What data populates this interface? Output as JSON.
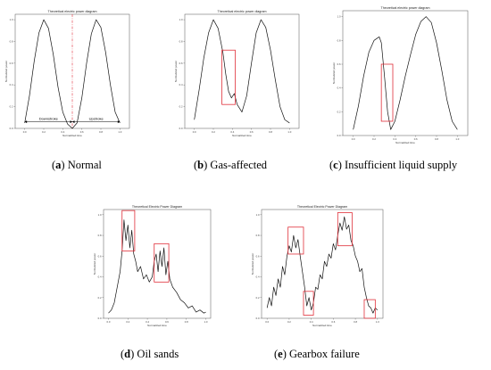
{
  "figure": {
    "captions": [
      {
        "letter": "a",
        "text": "Normal"
      },
      {
        "letter": "b",
        "text": "Gas-affected"
      },
      {
        "letter": "c",
        "text": "Insufficient liquid supply"
      },
      {
        "letter": "d",
        "text": "Oil sands"
      },
      {
        "letter": "e",
        "text": "Gearbox failure"
      }
    ]
  },
  "chart_data": [
    {
      "type": "line",
      "title": "Theoretical electric power diagram",
      "xlabel": "Normalized time",
      "ylabel": "Normalized power",
      "xlim": [
        -0.1,
        1.1
      ],
      "ylim": [
        0,
        1.05
      ],
      "xticks": [
        "0.0",
        "0.2",
        "0.4",
        "0.6",
        "0.8",
        "1.0"
      ],
      "yticks": [
        "0.0",
        "0.2",
        "0.4",
        "0.6",
        "0.8",
        "1.0"
      ],
      "annotations": [
        "Downstroke",
        "Upstroke"
      ],
      "divider_x": 0.5,
      "series": [
        {
          "x": [
            0,
            0.05,
            0.1,
            0.15,
            0.2,
            0.25,
            0.3,
            0.35,
            0.4,
            0.45,
            0.5,
            0.55,
            0.6,
            0.65,
            0.7,
            0.75,
            0.8,
            0.85,
            0.9,
            0.95,
            1.0
          ],
          "y": [
            0.05,
            0.3,
            0.62,
            0.88,
            1.0,
            0.92,
            0.68,
            0.38,
            0.15,
            0.04,
            0.0,
            0.05,
            0.28,
            0.6,
            0.87,
            1.0,
            0.93,
            0.7,
            0.4,
            0.15,
            0.05
          ]
        }
      ]
    },
    {
      "type": "line",
      "title": "Theoretical electric power diagram",
      "xlabel": "Normalized time",
      "ylabel": "Normalized power",
      "xlim": [
        -0.1,
        1.1
      ],
      "ylim": [
        0,
        1.05
      ],
      "xticks": [
        "0.0",
        "0.2",
        "0.4",
        "0.6",
        "0.8",
        "1.0"
      ],
      "yticks": [
        "0.0",
        "0.2",
        "0.4",
        "0.6",
        "0.8",
        "1.0"
      ],
      "highlight_regions": [
        {
          "x": [
            0.29,
            0.43
          ],
          "y": [
            0.22,
            0.72
          ]
        }
      ],
      "series": [
        {
          "x": [
            0,
            0.05,
            0.1,
            0.15,
            0.2,
            0.25,
            0.3,
            0.33,
            0.36,
            0.39,
            0.42,
            0.45,
            0.5,
            0.55,
            0.6,
            0.65,
            0.7,
            0.75,
            0.8,
            0.85,
            0.9,
            0.95,
            1.0
          ],
          "y": [
            0.08,
            0.35,
            0.65,
            0.88,
            1.0,
            0.92,
            0.7,
            0.5,
            0.34,
            0.28,
            0.32,
            0.22,
            0.15,
            0.3,
            0.6,
            0.88,
            1.0,
            0.93,
            0.72,
            0.45,
            0.2,
            0.08,
            0.05
          ]
        }
      ]
    },
    {
      "type": "line",
      "title": "Theoretical electric power diagram",
      "xlabel": "Normalized time",
      "ylabel": "Normalized power",
      "xlim": [
        -0.1,
        1.1
      ],
      "ylim": [
        0,
        1.05
      ],
      "xticks": [
        "0.0",
        "0.2",
        "0.4",
        "0.6",
        "0.8",
        "1.0"
      ],
      "yticks": [
        "0.0",
        "0.2",
        "0.4",
        "0.6",
        "0.8",
        "1.0"
      ],
      "highlight_regions": [
        {
          "x": [
            0.27,
            0.38
          ],
          "y": [
            0.12,
            0.6
          ]
        }
      ],
      "series": [
        {
          "x": [
            0,
            0.05,
            0.1,
            0.15,
            0.2,
            0.25,
            0.27,
            0.3,
            0.33,
            0.36,
            0.4,
            0.45,
            0.5,
            0.55,
            0.6,
            0.65,
            0.7,
            0.75,
            0.8,
            0.85,
            0.9,
            0.95,
            1.0
          ],
          "y": [
            0.05,
            0.25,
            0.5,
            0.7,
            0.8,
            0.83,
            0.78,
            0.5,
            0.2,
            0.05,
            0.12,
            0.3,
            0.5,
            0.68,
            0.85,
            0.96,
            1.0,
            0.95,
            0.78,
            0.55,
            0.3,
            0.12,
            0.05
          ]
        }
      ]
    },
    {
      "type": "line",
      "title": "Theoretical Electric Power Diagram",
      "xlabel": "Normalized time",
      "ylabel": "Normalized power",
      "xlim": [
        -0.05,
        1.05
      ],
      "ylim": [
        0,
        1.05
      ],
      "xticks": [
        "0.0",
        "0.2",
        "0.4",
        "0.6",
        "0.8",
        "1.0"
      ],
      "yticks": [
        "0.0",
        "0.2",
        "0.4",
        "0.6",
        "0.8",
        "1.0"
      ],
      "highlight_regions": [
        {
          "x": [
            0.14,
            0.27
          ],
          "y": [
            0.65,
            1.04
          ]
        },
        {
          "x": [
            0.47,
            0.62
          ],
          "y": [
            0.35,
            0.72
          ]
        }
      ],
      "series": [
        {
          "x": [
            0,
            0.03,
            0.06,
            0.09,
            0.12,
            0.14,
            0.16,
            0.18,
            0.2,
            0.22,
            0.24,
            0.26,
            0.28,
            0.3,
            0.33,
            0.36,
            0.39,
            0.42,
            0.45,
            0.47,
            0.49,
            0.51,
            0.53,
            0.55,
            0.57,
            0.59,
            0.61,
            0.63,
            0.66,
            0.7,
            0.74,
            0.78,
            0.82,
            0.86,
            0.9,
            0.94,
            0.98,
            1.0
          ],
          "y": [
            0.05,
            0.08,
            0.15,
            0.3,
            0.45,
            0.65,
            0.95,
            0.75,
            0.9,
            0.68,
            0.85,
            0.62,
            0.55,
            0.45,
            0.5,
            0.38,
            0.42,
            0.35,
            0.4,
            0.55,
            0.62,
            0.45,
            0.65,
            0.5,
            0.68,
            0.42,
            0.55,
            0.38,
            0.3,
            0.25,
            0.18,
            0.15,
            0.1,
            0.12,
            0.06,
            0.08,
            0.05,
            0.06
          ]
        }
      ]
    },
    {
      "type": "line",
      "title": "Theoretical Electric Power Diagram",
      "xlabel": "Normalized time",
      "ylabel": "Normalized power",
      "xlim": [
        -0.05,
        1.05
      ],
      "ylim": [
        0,
        1.05
      ],
      "xticks": [
        "0.0",
        "0.2",
        "0.4",
        "0.6",
        "0.8",
        "1.0"
      ],
      "yticks": [
        "0.0",
        "0.2",
        "0.4",
        "0.6",
        "0.8",
        "1.0"
      ],
      "highlight_regions": [
        {
          "x": [
            0.19,
            0.33
          ],
          "y": [
            0.62,
            0.88
          ]
        },
        {
          "x": [
            0.33,
            0.42
          ],
          "y": [
            0.03,
            0.26
          ]
        },
        {
          "x": [
            0.64,
            0.77
          ],
          "y": [
            0.7,
            1.02
          ]
        },
        {
          "x": [
            0.88,
            0.98
          ],
          "y": [
            0.0,
            0.18
          ]
        }
      ],
      "series": [
        {
          "x": [
            0,
            0.02,
            0.04,
            0.06,
            0.08,
            0.1,
            0.12,
            0.14,
            0.16,
            0.18,
            0.2,
            0.22,
            0.24,
            0.26,
            0.28,
            0.3,
            0.32,
            0.34,
            0.36,
            0.38,
            0.4,
            0.42,
            0.44,
            0.46,
            0.48,
            0.5,
            0.52,
            0.54,
            0.56,
            0.58,
            0.6,
            0.62,
            0.64,
            0.66,
            0.68,
            0.7,
            0.72,
            0.74,
            0.76,
            0.78,
            0.8,
            0.82,
            0.84,
            0.86,
            0.88,
            0.9,
            0.92,
            0.94,
            0.96,
            0.98,
            1.0
          ],
          "y": [
            0.1,
            0.2,
            0.12,
            0.3,
            0.22,
            0.38,
            0.3,
            0.5,
            0.42,
            0.6,
            0.7,
            0.64,
            0.8,
            0.68,
            0.76,
            0.6,
            0.45,
            0.3,
            0.12,
            0.2,
            0.08,
            0.15,
            0.3,
            0.28,
            0.42,
            0.38,
            0.55,
            0.5,
            0.62,
            0.58,
            0.72,
            0.66,
            0.8,
            0.92,
            0.85,
            0.98,
            0.86,
            0.9,
            0.75,
            0.7,
            0.6,
            0.55,
            0.45,
            0.48,
            0.3,
            0.2,
            0.12,
            0.1,
            0.05,
            0.1,
            0.08
          ]
        }
      ]
    }
  ]
}
